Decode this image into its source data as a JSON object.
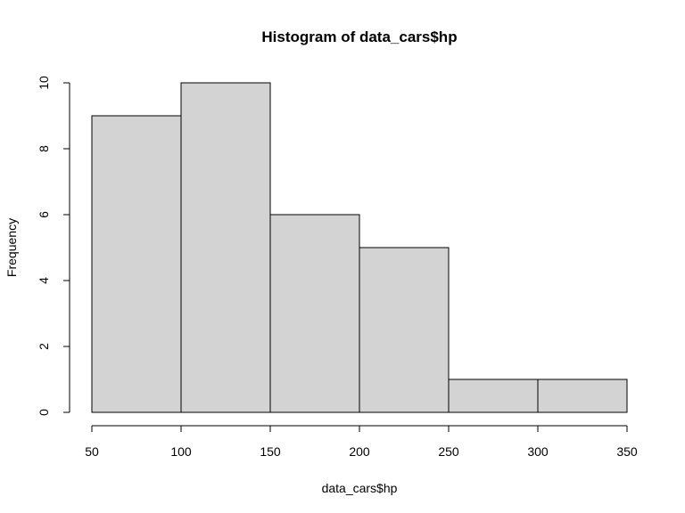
{
  "chart_data": {
    "type": "bar",
    "title": "Histogram of data_cars$hp",
    "xlabel": "data_cars$hp",
    "ylabel": "Frequency",
    "bins": [
      {
        "from": 50,
        "to": 100,
        "count": 9
      },
      {
        "from": 100,
        "to": 150,
        "count": 10
      },
      {
        "from": 150,
        "to": 200,
        "count": 6
      },
      {
        "from": 200,
        "to": 250,
        "count": 5
      },
      {
        "from": 250,
        "to": 300,
        "count": 1
      },
      {
        "from": 300,
        "to": 350,
        "count": 1
      }
    ],
    "xlim": [
      50,
      350
    ],
    "ylim": [
      0,
      10
    ],
    "xticks": [
      50,
      100,
      150,
      200,
      250,
      300,
      350
    ],
    "yticks": [
      0,
      2,
      4,
      6,
      8,
      10
    ],
    "bar_color": "#d3d3d3",
    "edge_color": "#000000",
    "grid": false,
    "legend": "none"
  }
}
